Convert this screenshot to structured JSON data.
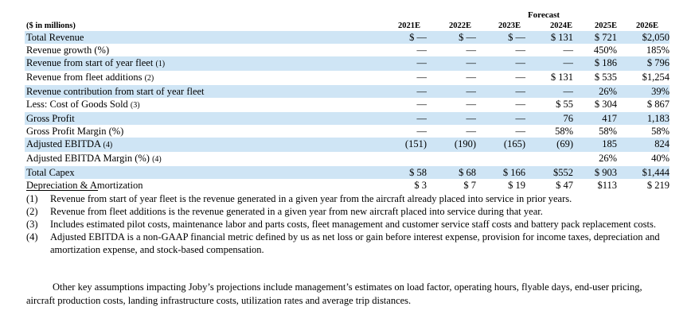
{
  "header": {
    "forecast_label": "Forecast",
    "unit_label": "($ in millions)",
    "years": [
      "2021E",
      "2022E",
      "2023E",
      "2024E",
      "2025E",
      "2026E"
    ]
  },
  "rows": [
    {
      "label": "Total Revenue",
      "note": "",
      "shade": true,
      "values": [
        "$ —",
        "$ —",
        "$ —",
        "$ 131",
        "$ 721",
        "$2,050"
      ]
    },
    {
      "label": "Revenue growth (%)",
      "note": "",
      "shade": false,
      "values": [
        "—",
        "—",
        "—",
        "—",
        "450%",
        "185%"
      ]
    },
    {
      "label": "Revenue from start of year fleet",
      "note": "(1)",
      "shade": true,
      "values": [
        "—",
        "—",
        "—",
        "—",
        "$ 186",
        "$ 796"
      ]
    },
    {
      "label": "Revenue from fleet additions",
      "note": "(2)",
      "shade": false,
      "values": [
        "—",
        "—",
        "—",
        "$ 131",
        "$ 535",
        "$1,254"
      ]
    },
    {
      "label": "Revenue contribution from start of year fleet",
      "note": "",
      "shade": true,
      "values": [
        "—",
        "—",
        "—",
        "—",
        "26%",
        "39%"
      ]
    },
    {
      "label": "Less: Cost of Goods Sold",
      "note": "(3)",
      "shade": false,
      "values": [
        "—",
        "—",
        "—",
        "$ 55",
        "$ 304",
        "$ 867"
      ]
    },
    {
      "label": "Gross Profit",
      "note": "",
      "shade": true,
      "values": [
        "—",
        "—",
        "—",
        "76",
        "417",
        "1,183"
      ]
    },
    {
      "label": "Gross Profit Margin (%)",
      "note": "",
      "shade": false,
      "values": [
        "—",
        "—",
        "—",
        "58%",
        "58%",
        "58%"
      ]
    },
    {
      "label": "Adjusted EBITDA",
      "note": "(4)",
      "shade": true,
      "values": [
        "(151)",
        "(190)",
        "(165)",
        "(69)",
        "185",
        "824"
      ]
    },
    {
      "label": "Adjusted EBITDA Margin (%)",
      "note": "(4)",
      "shade": false,
      "values": [
        "",
        "",
        "",
        "",
        "26%",
        "40%"
      ]
    },
    {
      "label": "Total Capex",
      "note": "",
      "shade": true,
      "values": [
        "$ 58",
        "$ 68",
        "$ 166",
        "$552",
        "$ 903",
        "$1,444"
      ]
    },
    {
      "label": "Depreciation & Amortization",
      "note": "",
      "shade": false,
      "values": [
        "$ 3",
        "$ 7",
        "$ 19",
        "$ 47",
        "$113",
        "$ 219"
      ]
    }
  ],
  "footnotes": [
    {
      "num": "(1)",
      "text": "Revenue from start of year fleet is the revenue generated in a given year from the aircraft already placed into service in prior years."
    },
    {
      "num": "(2)",
      "text": "Revenue from fleet additions is the revenue generated in a given year from new aircraft placed into service during that year."
    },
    {
      "num": "(3)",
      "text": "Includes estimated pilot costs, maintenance labor and parts costs, fleet management and customer service staff costs and battery pack replacement costs."
    },
    {
      "num": "(4)",
      "text": "Adjusted EBITDA is a non-GAAP financial metric defined by us as net loss or gain before interest expense, provision for income taxes, depreciation and amortization expense, and stock-based compensation."
    }
  ],
  "closing": "Other key assumptions impacting Joby’s projections include management’s estimates on load factor, operating hours, flyable days, end-user pricing, aircraft production costs, landing infrastructure costs, utilization rates and average trip distances."
}
